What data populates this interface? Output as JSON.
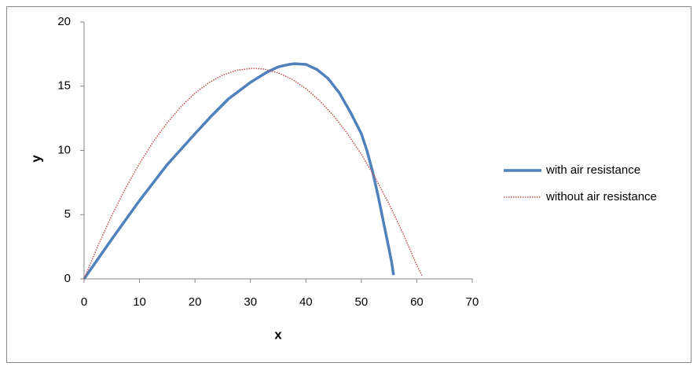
{
  "chart_data": {
    "type": "line",
    "x_label": "x",
    "y_label": "y",
    "xlim": [
      0,
      70
    ],
    "xticks": [
      0,
      10,
      20,
      30,
      40,
      50,
      60,
      70
    ],
    "ylim": [
      0,
      20
    ],
    "yticks": [
      0,
      5,
      10,
      15,
      20
    ],
    "legend": "right",
    "series": [
      {
        "name": "with air resistance",
        "color": "#4f81bd",
        "style": "solid",
        "x": [
          0,
          5,
          10,
          15,
          20,
          23,
          26,
          30,
          33,
          35,
          37,
          38,
          40,
          42,
          44,
          46,
          48,
          50,
          51,
          52,
          53,
          54,
          55,
          55.5,
          55.8
        ],
        "values": [
          0,
          3.1,
          6.1,
          8.9,
          11.3,
          12.7,
          14.0,
          15.3,
          16.1,
          16.5,
          16.7,
          16.75,
          16.7,
          16.3,
          15.6,
          14.5,
          13.0,
          11.3,
          10.0,
          8.4,
          6.5,
          4.4,
          2.3,
          1.2,
          0.3
        ]
      },
      {
        "name": "without air resistance",
        "color": "#c0504d",
        "style": "dotted",
        "x": [
          0,
          2.5,
          5,
          7.5,
          10,
          12.5,
          15,
          17.5,
          20,
          22.5,
          25,
          27.5,
          30.5,
          32.5,
          35,
          37.5,
          40,
          42.5,
          45,
          47.5,
          50,
          52.5,
          55,
          57.5,
          60,
          61
        ],
        "values": [
          0,
          2.58,
          4.94,
          7.07,
          8.99,
          10.69,
          12.16,
          13.42,
          14.46,
          15.27,
          15.87,
          16.24,
          16.4,
          16.33,
          16.04,
          15.54,
          14.81,
          13.86,
          12.69,
          11.31,
          9.7,
          7.87,
          5.82,
          3.55,
          1.06,
          0.2
        ]
      }
    ]
  }
}
